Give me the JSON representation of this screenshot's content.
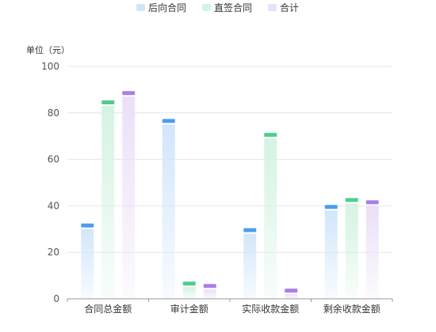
{
  "chart_data": {
    "type": "bar",
    "unit_label": "单位（元）",
    "categories": [
      "合同总金额",
      "审计金额",
      "实际收款金额",
      "剩余收款金额"
    ],
    "series": [
      {
        "name": "后向合同",
        "values": [
          30,
          75,
          28,
          38
        ],
        "cap_color": "#4a9ef0",
        "fill_color": "#d2e6fb"
      },
      {
        "name": "直签合同",
        "values": [
          83,
          5,
          69,
          41
        ],
        "cap_color": "#4fcf8b",
        "fill_color": "#d5f3e3"
      },
      {
        "name": "合计",
        "values": [
          87,
          4,
          2,
          40
        ],
        "cap_color": "#a97ee6",
        "fill_color": "#ebe0f8"
      }
    ],
    "ylim": [
      0,
      100
    ],
    "yticks": [
      0,
      20,
      40,
      60,
      80,
      100
    ],
    "grid": true,
    "legend_position": "top-center"
  }
}
